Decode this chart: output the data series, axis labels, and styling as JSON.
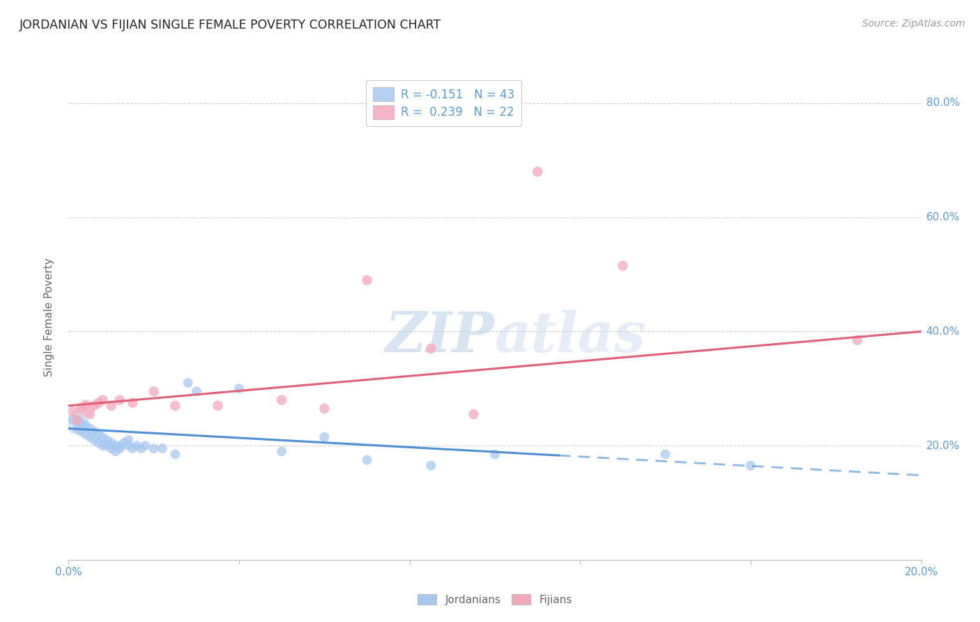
{
  "title": "JORDANIAN VS FIJIAN SINGLE FEMALE POVERTY CORRELATION CHART",
  "source": "Source: ZipAtlas.com",
  "ylabel": "Single Female Poverty",
  "xlim": [
    0.0,
    0.2
  ],
  "ylim": [
    0.0,
    0.85
  ],
  "ytick_values": [
    0.0,
    0.2,
    0.4,
    0.6,
    0.8
  ],
  "xtick_labels": [
    "0.0%",
    "",
    "",
    "",
    "",
    "20.0%"
  ],
  "xtick_values": [
    0.0,
    0.04,
    0.08,
    0.12,
    0.16,
    0.2
  ],
  "right_ytick_labels": [
    "20.0%",
    "40.0%",
    "60.0%",
    "80.0%"
  ],
  "right_ytick_values": [
    0.2,
    0.4,
    0.6,
    0.8
  ],
  "jordan_color": "#a8c8f0",
  "fijian_color": "#f4a8bc",
  "jordan_R": -0.151,
  "jordan_N": 43,
  "fijian_R": 0.239,
  "fijian_N": 22,
  "jordan_points": [
    [
      0.001,
      0.245
    ],
    [
      0.002,
      0.245
    ],
    [
      0.002,
      0.23
    ],
    [
      0.003,
      0.24
    ],
    [
      0.003,
      0.225
    ],
    [
      0.004,
      0.235
    ],
    [
      0.004,
      0.22
    ],
    [
      0.005,
      0.23
    ],
    [
      0.005,
      0.215
    ],
    [
      0.006,
      0.225
    ],
    [
      0.006,
      0.21
    ],
    [
      0.007,
      0.22
    ],
    [
      0.007,
      0.205
    ],
    [
      0.008,
      0.215
    ],
    [
      0.008,
      0.2
    ],
    [
      0.009,
      0.21
    ],
    [
      0.009,
      0.2
    ],
    [
      0.01,
      0.205
    ],
    [
      0.01,
      0.195
    ],
    [
      0.011,
      0.2
    ],
    [
      0.011,
      0.19
    ],
    [
      0.012,
      0.2
    ],
    [
      0.012,
      0.195
    ],
    [
      0.013,
      0.205
    ],
    [
      0.014,
      0.2
    ],
    [
      0.014,
      0.21
    ],
    [
      0.015,
      0.195
    ],
    [
      0.016,
      0.2
    ],
    [
      0.017,
      0.195
    ],
    [
      0.018,
      0.2
    ],
    [
      0.02,
      0.195
    ],
    [
      0.022,
      0.195
    ],
    [
      0.025,
      0.185
    ],
    [
      0.028,
      0.31
    ],
    [
      0.03,
      0.295
    ],
    [
      0.04,
      0.3
    ],
    [
      0.05,
      0.19
    ],
    [
      0.06,
      0.215
    ],
    [
      0.07,
      0.175
    ],
    [
      0.085,
      0.165
    ],
    [
      0.1,
      0.185
    ],
    [
      0.14,
      0.185
    ],
    [
      0.16,
      0.165
    ]
  ],
  "jordan_big_cluster": [
    0.002,
    0.24
  ],
  "fijian_points": [
    [
      0.001,
      0.26
    ],
    [
      0.002,
      0.245
    ],
    [
      0.003,
      0.265
    ],
    [
      0.004,
      0.27
    ],
    [
      0.005,
      0.255
    ],
    [
      0.006,
      0.27
    ],
    [
      0.007,
      0.275
    ],
    [
      0.008,
      0.28
    ],
    [
      0.01,
      0.27
    ],
    [
      0.012,
      0.28
    ],
    [
      0.015,
      0.275
    ],
    [
      0.02,
      0.295
    ],
    [
      0.025,
      0.27
    ],
    [
      0.035,
      0.27
    ],
    [
      0.05,
      0.28
    ],
    [
      0.06,
      0.265
    ],
    [
      0.07,
      0.49
    ],
    [
      0.085,
      0.37
    ],
    [
      0.095,
      0.255
    ],
    [
      0.11,
      0.68
    ],
    [
      0.13,
      0.515
    ],
    [
      0.185,
      0.385
    ]
  ],
  "jordan_line_color": "#4e8fd4",
  "fijian_line_color": "#e0607a",
  "jordan_line_solid_end": 0.115,
  "jordan_line_x0": 0.0,
  "jordan_line_y0": 0.23,
  "jordan_line_y1": 0.188,
  "jordan_line_xend": 0.2,
  "jordan_line_yend": 0.148,
  "fijian_line_x0": 0.0,
  "fijian_line_y0": 0.27,
  "fijian_line_xend": 0.2,
  "fijian_line_yend": 0.4,
  "background_color": "#ffffff",
  "grid_color": "#d0d0d0",
  "title_color": "#222222",
  "axis_label_color": "#666666",
  "tick_color": "#5b9bd5",
  "watermark_color": "#d8e8f8",
  "watermark_text_color": "#c8d8e8"
}
